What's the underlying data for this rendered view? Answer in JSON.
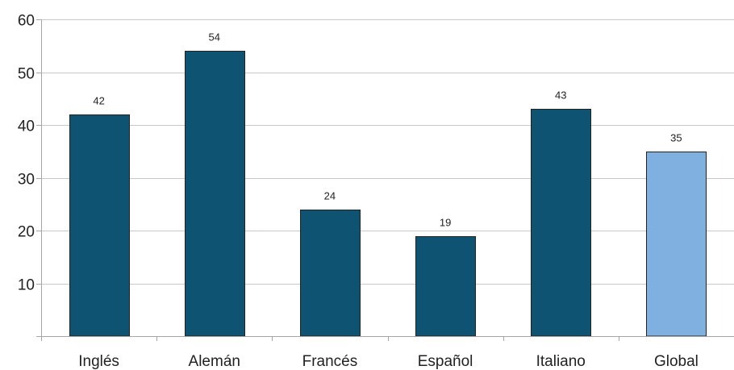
{
  "chart_data": {
    "type": "bar",
    "categories": [
      "Inglés",
      "Alemán",
      "Francés",
      "Español",
      "Italiano",
      "Global"
    ],
    "values": [
      42,
      54,
      24,
      19,
      43,
      35
    ],
    "data_labels": [
      "42",
      "54",
      "24",
      "19",
      "43",
      "35"
    ],
    "bar_colors": [
      "#0f5372",
      "#0f5372",
      "#0f5372",
      "#0f5372",
      "#0f5372",
      "#7fb0e0"
    ],
    "bar_stroke": "#222222",
    "title": "",
    "xlabel": "",
    "ylabel": "",
    "ylim": [
      0,
      60
    ],
    "yticks": [
      10,
      20,
      30,
      40,
      50,
      60
    ],
    "ytick_labels": [
      "10",
      "20",
      "30",
      "40",
      "50",
      "60"
    ],
    "grid": true,
    "legend": "none"
  }
}
